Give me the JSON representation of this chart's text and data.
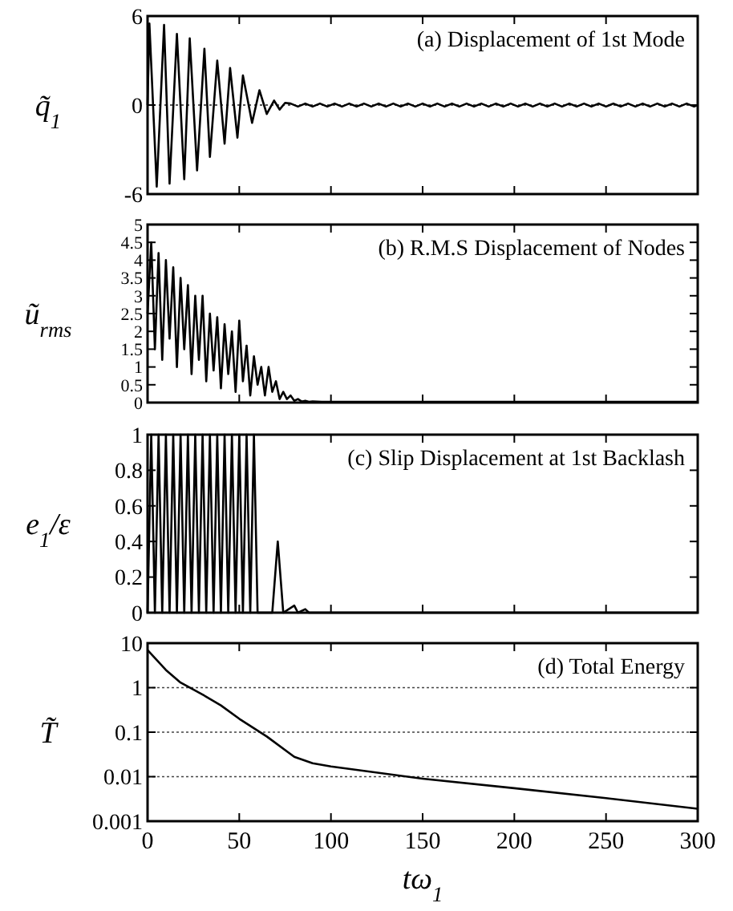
{
  "chart_data": [
    {
      "type": "line",
      "title": "(a)  Displacement of 1st Mode",
      "ylabel": "q̃$_{1}$",
      "xlim": [
        0,
        300
      ],
      "xticks": [
        0,
        50,
        100,
        150,
        200,
        250,
        300
      ],
      "ylim": [
        -6,
        6
      ],
      "yticks": [
        -6,
        0,
        6
      ],
      "tick_labels": "y",
      "color": "#000000",
      "ref_lines": [
        {
          "axis": "y",
          "value": 0,
          "line_style": "dotted",
          "color": "#555555"
        }
      ],
      "x": [
        0,
        1,
        5,
        9,
        12,
        16,
        20,
        23,
        27,
        31,
        34,
        38,
        42,
        45,
        49,
        52,
        57,
        61,
        65,
        69,
        72,
        75,
        78,
        82,
        86,
        90,
        94,
        98,
        102,
        106,
        110,
        114,
        118,
        122,
        126,
        130,
        134,
        138,
        142,
        146,
        150,
        154,
        158,
        162,
        166,
        170,
        174,
        178,
        182,
        186,
        190,
        194,
        198,
        202,
        206,
        210,
        214,
        218,
        222,
        226,
        230,
        234,
        238,
        242,
        246,
        250,
        254,
        258,
        262,
        266,
        270,
        274,
        278,
        282,
        286,
        290,
        294,
        298,
        300
      ],
      "values": [
        0,
        5.5,
        -5.5,
        5.4,
        -5.3,
        4.8,
        -5.0,
        4.5,
        -4.4,
        3.8,
        -3.5,
        3.0,
        -2.6,
        2.5,
        -2.2,
        2.0,
        -1.2,
        1.0,
        -0.6,
        0.3,
        -0.3,
        0.15,
        0.1,
        -0.1,
        0.1,
        -0.1,
        0.1,
        -0.1,
        0.1,
        -0.1,
        0.1,
        -0.1,
        0.1,
        -0.1,
        0.1,
        -0.1,
        0.1,
        -0.1,
        0.1,
        -0.1,
        0.1,
        -0.1,
        0.1,
        -0.1,
        0.1,
        -0.1,
        0.1,
        -0.1,
        0.1,
        -0.1,
        0.1,
        -0.1,
        0.1,
        -0.1,
        0.1,
        -0.1,
        0.1,
        -0.1,
        0.1,
        -0.1,
        0.1,
        -0.1,
        0.1,
        -0.1,
        0.1,
        -0.1,
        0.1,
        -0.1,
        0.1,
        -0.1,
        0.1,
        -0.1,
        0.1,
        -0.1,
        0.1,
        -0.1,
        0.1,
        -0.1,
        0
      ]
    },
    {
      "type": "line",
      "title": "(b)  R.M.S Displacement of Nodes",
      "ylabel": "ũ$_{rms}$",
      "xlim": [
        0,
        300
      ],
      "xticks": [
        0,
        50,
        100,
        150,
        200,
        250,
        300
      ],
      "ylim": [
        0,
        5
      ],
      "yticks": [
        0,
        0.5,
        1,
        1.5,
        2,
        2.5,
        3,
        3.5,
        4,
        4.5,
        5
      ],
      "tick_labels": "y",
      "color": "#000000",
      "x": [
        0,
        2,
        4,
        6,
        8,
        10,
        12,
        14,
        16,
        18,
        20,
        22,
        24,
        26,
        28,
        30,
        32,
        34,
        36,
        38,
        40,
        42,
        44,
        46,
        48,
        50,
        52,
        54,
        56,
        58,
        60,
        62,
        64,
        66,
        68,
        70,
        72,
        74,
        76,
        78,
        80,
        82,
        84,
        86,
        88,
        90,
        95,
        100,
        150,
        200,
        250,
        300
      ],
      "values": [
        2.5,
        4.5,
        1.5,
        4.2,
        1.2,
        4.0,
        1.8,
        3.8,
        1.0,
        3.5,
        1.5,
        3.3,
        0.8,
        3.0,
        1.2,
        3.0,
        0.6,
        2.5,
        0.9,
        2.4,
        0.4,
        2.2,
        0.8,
        2.0,
        0.3,
        2.3,
        0.6,
        1.6,
        0.2,
        1.3,
        0.5,
        1.0,
        0.2,
        1.0,
        0.3,
        0.6,
        0.1,
        0.3,
        0.1,
        0.2,
        0.05,
        0.1,
        0.03,
        0.05,
        0.02,
        0.03,
        0.02,
        0.02,
        0.02,
        0.02,
        0.02,
        0.02
      ]
    },
    {
      "type": "line",
      "title": "(c)  Slip Displacement at 1st Backlash",
      "ylabel": "e$_{1}$/ε",
      "xlim": [
        0,
        300
      ],
      "xticks": [
        0,
        50,
        100,
        150,
        200,
        250,
        300
      ],
      "ylim": [
        0,
        1
      ],
      "yticks": [
        0,
        0.2,
        0.4,
        0.6,
        0.8,
        1
      ],
      "tick_labels": "y",
      "color": "#000000",
      "x": [
        0,
        2,
        4,
        6,
        8,
        10,
        12,
        14,
        16,
        18,
        20,
        22,
        24,
        26,
        28,
        30,
        32,
        34,
        36,
        38,
        40,
        42,
        44,
        46,
        48,
        50,
        52,
        54,
        56,
        58,
        60,
        68,
        71,
        74,
        80,
        82,
        86,
        88,
        300
      ],
      "values": [
        0,
        1,
        0,
        1,
        0,
        1,
        0,
        1,
        0,
        1,
        0,
        1,
        0,
        1,
        0,
        1,
        0,
        1,
        0,
        1,
        0,
        1,
        0,
        1,
        0,
        1,
        0,
        1,
        0,
        1,
        0,
        0,
        0.4,
        0,
        0.04,
        0,
        0.02,
        0,
        0
      ]
    },
    {
      "type": "line",
      "title": "(d)  Total Energy",
      "ylabel": "T̃",
      "xlabel": "tω$_{1}$",
      "xlim": [
        0,
        300
      ],
      "xticks": [
        0,
        50,
        100,
        150,
        200,
        250,
        300
      ],
      "ylim": [
        0.001,
        10
      ],
      "yticks": [
        0.001,
        0.01,
        0.1,
        1,
        10
      ],
      "log": true,
      "grid": "y",
      "color": "#000000",
      "x": [
        0,
        10,
        18,
        30,
        40,
        50,
        65,
        80,
        90,
        100,
        150,
        200,
        250,
        300
      ],
      "values": [
        7,
        2.5,
        1.3,
        0.7,
        0.4,
        0.2,
        0.08,
        0.028,
        0.02,
        0.017,
        0.009,
        0.0055,
        0.0033,
        0.0019
      ]
    }
  ]
}
